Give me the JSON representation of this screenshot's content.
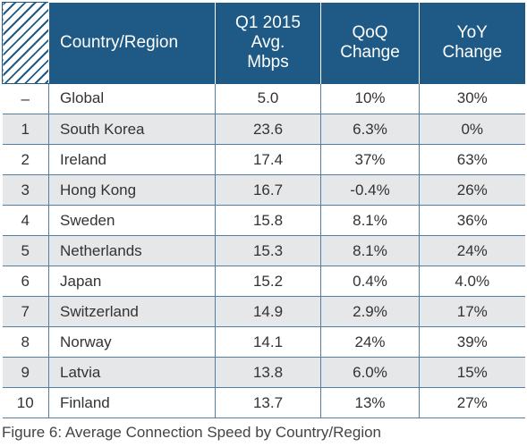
{
  "table": {
    "headers": {
      "rank": "",
      "country": "Country/Region",
      "avg": [
        "Q1 2015",
        "Avg.",
        "Mbps"
      ],
      "qoq": [
        "QoQ",
        "Change"
      ],
      "yoy": [
        "YoY",
        "Change"
      ]
    },
    "rows": [
      {
        "rank": "–",
        "country": "Global",
        "avg": "5.0",
        "qoq": "10%",
        "yoy": "30%"
      },
      {
        "rank": "1",
        "country": "South Korea",
        "avg": "23.6",
        "qoq": "6.3%",
        "yoy": "0%"
      },
      {
        "rank": "2",
        "country": "Ireland",
        "avg": "17.4",
        "qoq": "37%",
        "yoy": "63%"
      },
      {
        "rank": "3",
        "country": "Hong Kong",
        "avg": "16.7",
        "qoq": "-0.4%",
        "yoy": "26%"
      },
      {
        "rank": "4",
        "country": "Sweden",
        "avg": "15.8",
        "qoq": "8.1%",
        "yoy": "36%"
      },
      {
        "rank": "5",
        "country": "Netherlands",
        "avg": "15.3",
        "qoq": "8.1%",
        "yoy": "24%"
      },
      {
        "rank": "6",
        "country": "Japan",
        "avg": "15.2",
        "qoq": "0.4%",
        "yoy": "4.0%"
      },
      {
        "rank": "7",
        "country": "Switzerland",
        "avg": "14.9",
        "qoq": "2.9%",
        "yoy": "17%"
      },
      {
        "rank": "8",
        "country": "Norway",
        "avg": "14.1",
        "qoq": "24%",
        "yoy": "39%"
      },
      {
        "rank": "9",
        "country": "Latvia",
        "avg": "13.8",
        "qoq": "6.0%",
        "yoy": "15%"
      },
      {
        "rank": "10",
        "country": "Finland",
        "avg": "13.7",
        "qoq": "13%",
        "yoy": "27%"
      }
    ]
  },
  "caption": "Figure 6: Average Connection Speed by Country/Region",
  "colors": {
    "header_bg": "#1f5a86",
    "row_shade": "#e6e7e8",
    "grid_line": "#4f7fa6"
  }
}
